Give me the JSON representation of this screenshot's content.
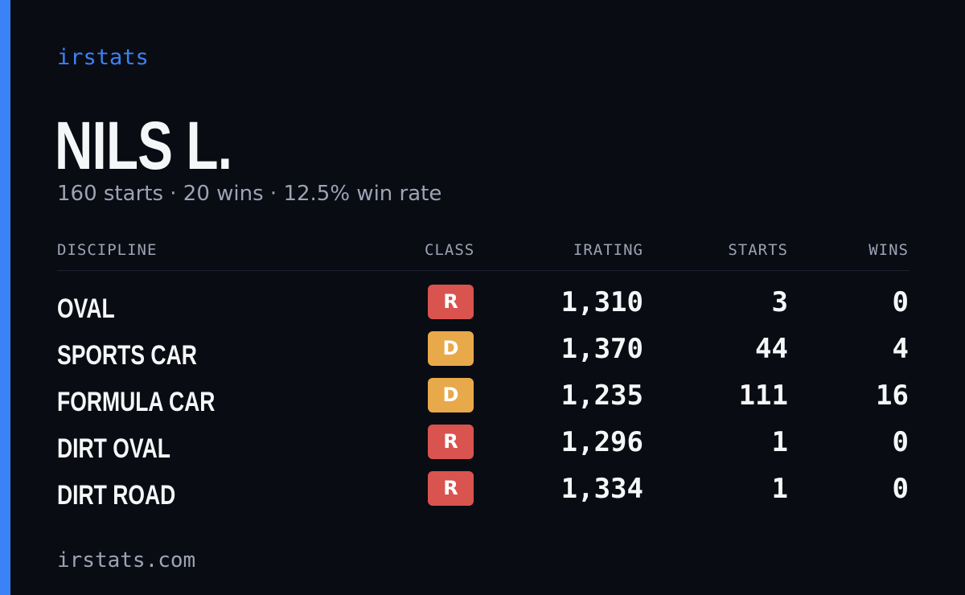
{
  "brand": "irstats",
  "player": {
    "name": "NILS L.",
    "summary": "160 starts · 20 wins · 12.5% win rate"
  },
  "table": {
    "headers": {
      "discipline": "DISCIPLINE",
      "class": "CLASS",
      "irating": "IRATING",
      "starts": "STARTS",
      "wins": "WINS"
    },
    "rows": [
      {
        "discipline": "OVAL",
        "class": "R",
        "class_color": "#d9534f",
        "irating": "1,310",
        "starts": "3",
        "wins": "0"
      },
      {
        "discipline": "SPORTS CAR",
        "class": "D",
        "class_color": "#e8a94a",
        "irating": "1,370",
        "starts": "44",
        "wins": "4"
      },
      {
        "discipline": "FORMULA CAR",
        "class": "D",
        "class_color": "#e8a94a",
        "irating": "1,235",
        "starts": "111",
        "wins": "16"
      },
      {
        "discipline": "DIRT OVAL",
        "class": "R",
        "class_color": "#d9534f",
        "irating": "1,296",
        "starts": "1",
        "wins": "0"
      },
      {
        "discipline": "DIRT ROAD",
        "class": "R",
        "class_color": "#d9534f",
        "irating": "1,334",
        "starts": "1",
        "wins": "0"
      }
    ]
  },
  "footer": "irstats.com",
  "colors": {
    "background": "#0a0c13",
    "accent": "#3b82f6",
    "muted_text": "#9ca3b4",
    "class_r": "#d9534f",
    "class_d": "#e8a94a"
  }
}
